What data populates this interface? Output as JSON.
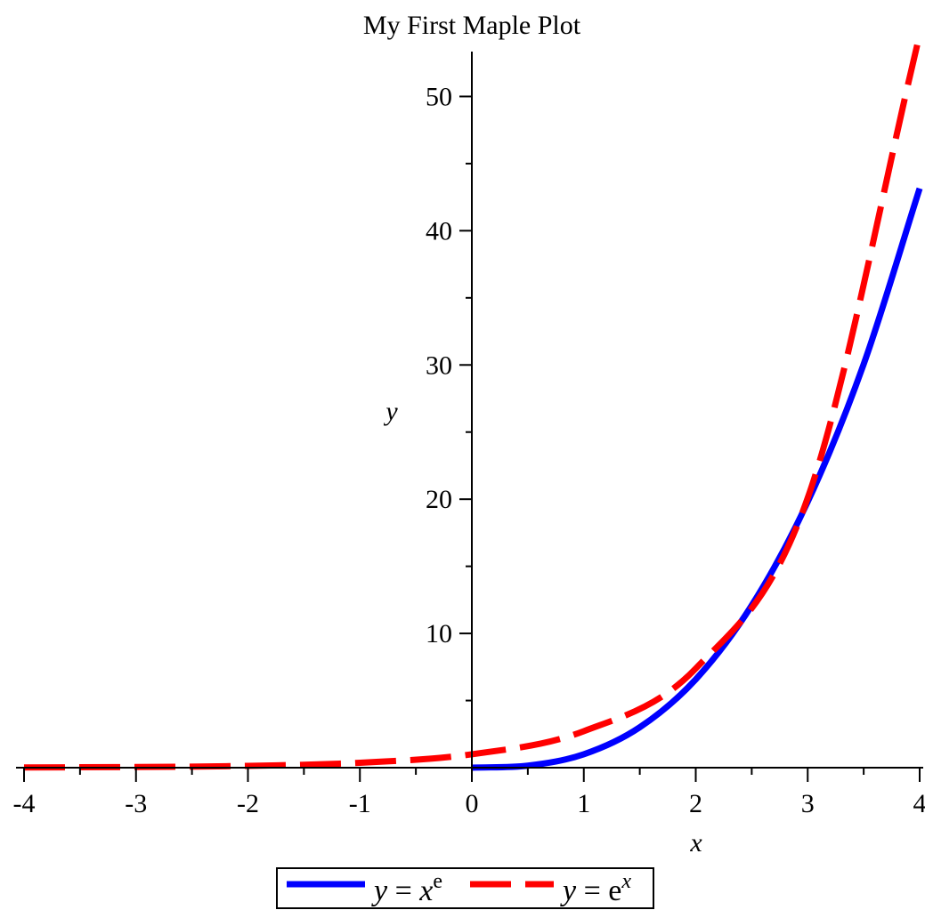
{
  "chart_data": {
    "type": "line",
    "title": "My First Maple Plot",
    "xlabel": "x",
    "ylabel": "y",
    "xlim": [
      -4,
      4
    ],
    "ylim": [
      0,
      55
    ],
    "x_ticks": [
      -4,
      -3,
      -2,
      -1,
      0,
      1,
      2,
      3,
      4
    ],
    "x_tick_labels": [
      "-4",
      "-3",
      "-2",
      "-1",
      "0",
      "1",
      "2",
      "3",
      "4"
    ],
    "y_ticks": [
      10,
      20,
      30,
      40,
      50
    ],
    "y_tick_labels": [
      "10",
      "20",
      "30",
      "40",
      "50"
    ],
    "grid": false,
    "legend_position": "bottom",
    "series": [
      {
        "name": "y = x^e",
        "legend": {
          "lhs": "y",
          "base": "x",
          "sup": "e"
        },
        "color": "#0000ff",
        "style": "solid",
        "x": [
          0,
          0.5,
          1,
          1.5,
          2,
          2.5,
          3,
          3.5,
          4
        ],
        "values": [
          0,
          0.15,
          1,
          3.01,
          6.58,
          12.09,
          19.81,
          30.06,
          43.15
        ]
      },
      {
        "name": "y = e^x",
        "legend": {
          "lhs": "y",
          "base": "e",
          "sup": "x"
        },
        "color": "#ff0000",
        "style": "dashed",
        "x": [
          -4,
          -3,
          -2,
          -1,
          0,
          1,
          2,
          3,
          4
        ],
        "values": [
          0.018,
          0.05,
          0.135,
          0.368,
          1,
          2.718,
          7.389,
          20.09,
          54.6
        ]
      }
    ]
  }
}
